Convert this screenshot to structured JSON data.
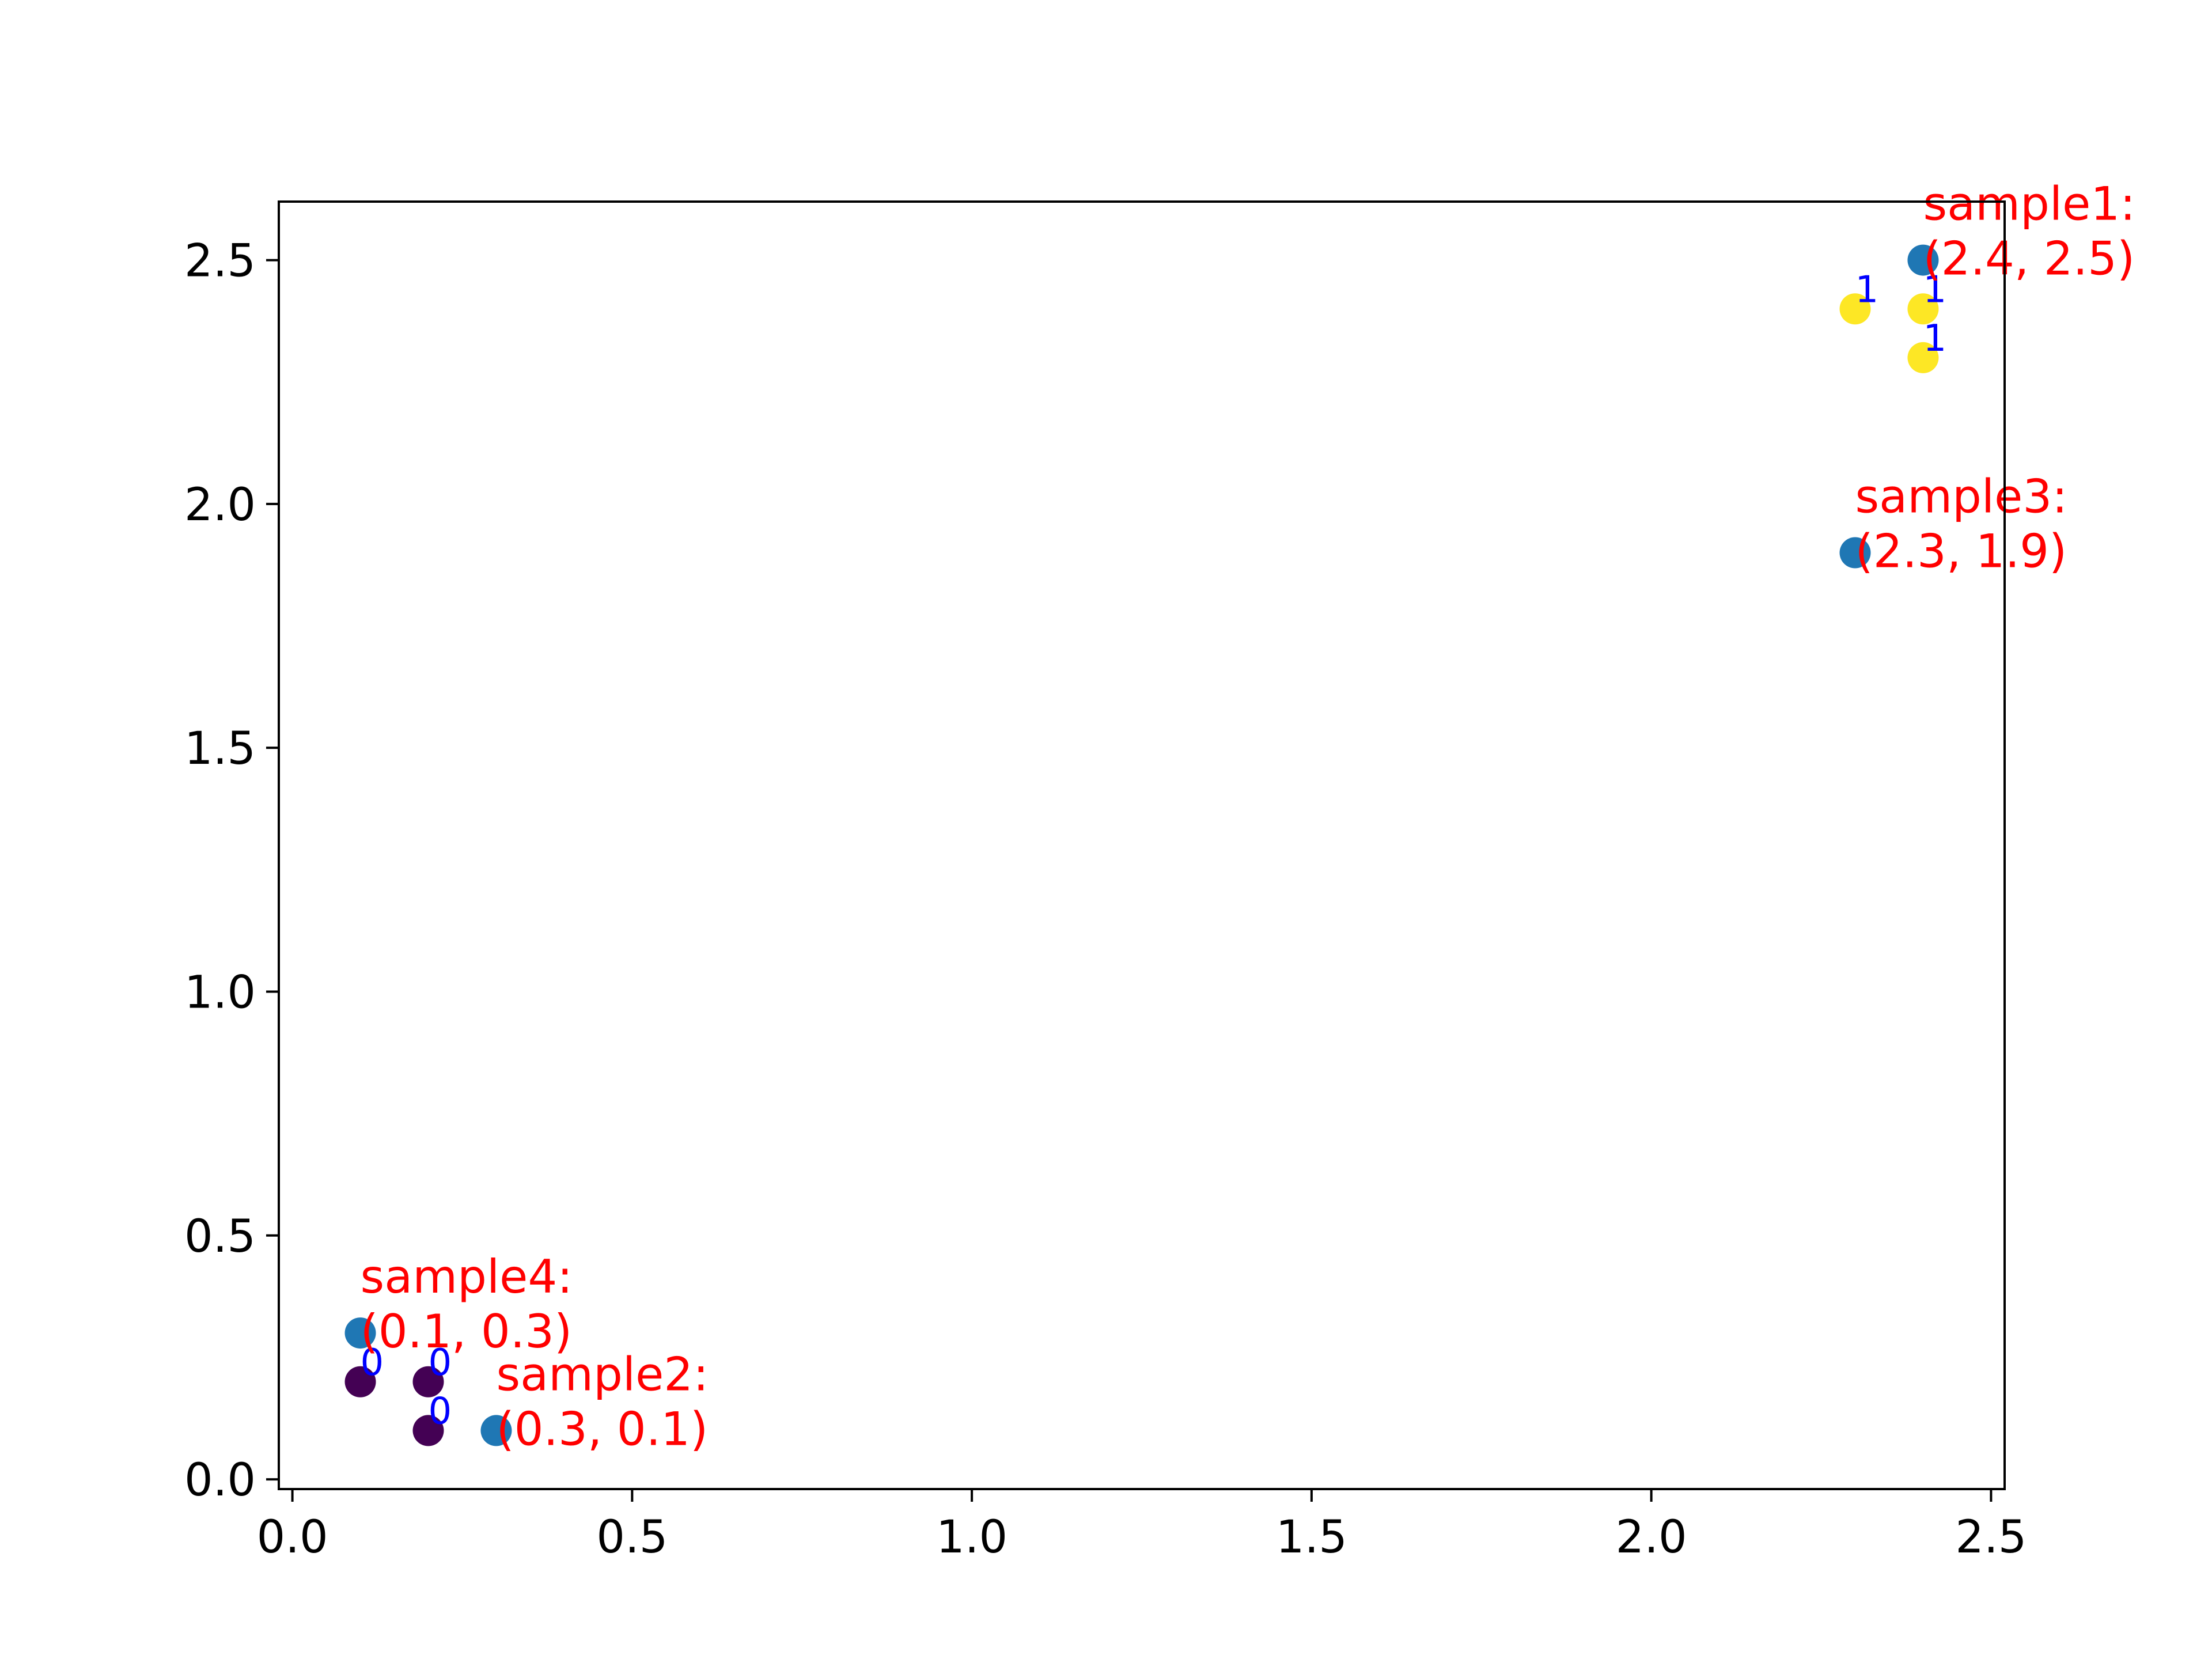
{
  "colors": {
    "sample_point": "#1f77b4",
    "cluster_0": "#440154",
    "cluster_1": "#fde725",
    "annotation_text": "#ff0000",
    "cluster_label_text": "#0000ff",
    "axis": "#000000"
  },
  "chart_data": {
    "type": "scatter",
    "title": "",
    "xlabel": "",
    "ylabel": "",
    "xlim": [
      -0.02,
      2.52
    ],
    "ylim": [
      -0.02,
      2.62
    ],
    "grid": false,
    "legend": null,
    "x_ticks": [
      "0.0",
      "0.5",
      "1.0",
      "1.5",
      "2.0",
      "2.5"
    ],
    "y_ticks": [
      "0.0",
      "0.5",
      "1.0",
      "1.5",
      "2.0",
      "2.5"
    ],
    "samples": [
      {
        "x": 2.4,
        "y": 2.5,
        "label_line1": "sample1:",
        "label_line2": "(2.4, 2.5)"
      },
      {
        "x": 0.3,
        "y": 0.1,
        "label_line1": "sample2:",
        "label_line2": "(0.3, 0.1)"
      },
      {
        "x": 2.3,
        "y": 1.9,
        "label_line1": "sample3:",
        "label_line2": "(2.3, 1.9)"
      },
      {
        "x": 0.1,
        "y": 0.3,
        "label_line1": "sample4:",
        "label_line2": "(0.1, 0.3)"
      }
    ],
    "clustered_points": [
      {
        "x": 0.1,
        "y": 0.2,
        "cluster": "0"
      },
      {
        "x": 0.2,
        "y": 0.2,
        "cluster": "0"
      },
      {
        "x": 0.2,
        "y": 0.1,
        "cluster": "0"
      },
      {
        "x": 2.3,
        "y": 2.4,
        "cluster": "1"
      },
      {
        "x": 2.4,
        "y": 2.4,
        "cluster": "1"
      },
      {
        "x": 2.4,
        "y": 2.3,
        "cluster": "1"
      }
    ]
  }
}
